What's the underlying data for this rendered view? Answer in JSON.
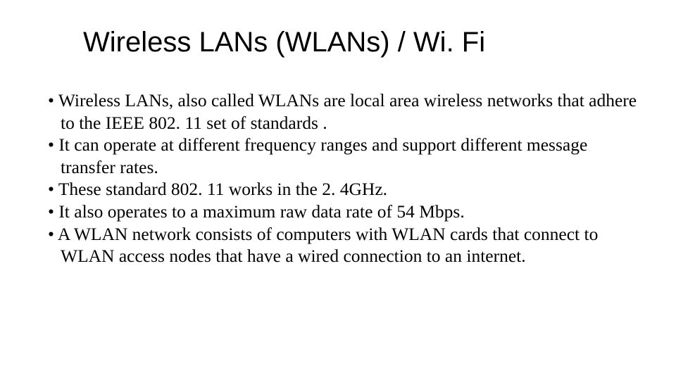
{
  "title": "Wireless LANs (WLANs) / Wi. Fi",
  "title_font": "Arial",
  "title_fontsize": 40,
  "title_color": "#000000",
  "body_font": "Times New Roman",
  "body_fontsize": 25.5,
  "body_color": "#000000",
  "background_color": "#ffffff",
  "bullets": [
    "Wireless LANs, also called WLANs are local area wireless networks that adhere to the IEEE 802. 11 set of standards .",
    "It can operate at different frequency ranges and support different message transfer rates.",
    "These standard 802. 11 works in the 2. 4GHz.",
    " It also operates to a maximum raw data rate of 54 Mbps.",
    "A WLAN network consists of computers with WLAN cards that connect to WLAN access nodes that have a wired connection to an internet."
  ]
}
